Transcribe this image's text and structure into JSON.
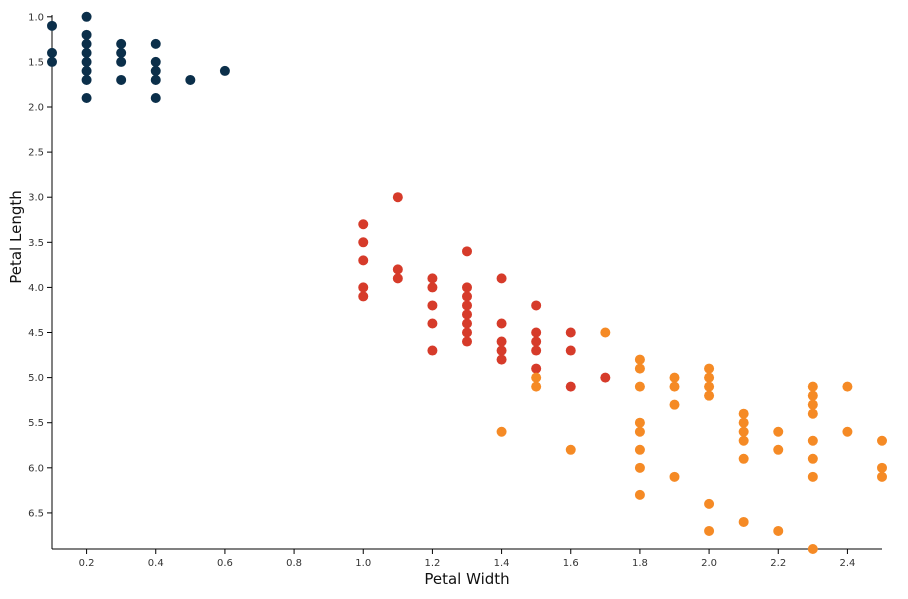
{
  "chart_data": {
    "type": "scatter",
    "title": "",
    "xlabel": "Petal Width",
    "ylabel": "Petal Length",
    "xlim": [
      0.1,
      2.5
    ],
    "ylim": [
      0.98,
      6.9
    ],
    "y_axis_inverted": true,
    "grid": false,
    "x_ticks": [
      "0.2",
      "0.4",
      "0.6",
      "0.8",
      "1.0",
      "1.2",
      "1.4",
      "1.6",
      "1.8",
      "2.0",
      "2.2",
      "2.4"
    ],
    "y_ticks": [
      "1.0",
      "1.5",
      "2.0",
      "2.5",
      "3.0",
      "3.5",
      "4.0",
      "4.5",
      "5.0",
      "5.5",
      "6.0",
      "6.5"
    ],
    "series": [
      {
        "color": "#0b2f4a",
        "points": [
          [
            0.1,
            1.1
          ],
          [
            0.1,
            1.4
          ],
          [
            0.1,
            1.5
          ],
          [
            0.2,
            1.0
          ],
          [
            0.2,
            1.2
          ],
          [
            0.2,
            1.3
          ],
          [
            0.2,
            1.4
          ],
          [
            0.2,
            1.5
          ],
          [
            0.2,
            1.6
          ],
          [
            0.2,
            1.7
          ],
          [
            0.2,
            1.9
          ],
          [
            0.3,
            1.3
          ],
          [
            0.3,
            1.4
          ],
          [
            0.3,
            1.5
          ],
          [
            0.3,
            1.7
          ],
          [
            0.4,
            1.3
          ],
          [
            0.4,
            1.5
          ],
          [
            0.4,
            1.6
          ],
          [
            0.4,
            1.7
          ],
          [
            0.4,
            1.9
          ],
          [
            0.5,
            1.7
          ],
          [
            0.6,
            1.6
          ]
        ]
      },
      {
        "color": "#d63b2a",
        "points": [
          [
            1.0,
            3.3
          ],
          [
            1.0,
            3.5
          ],
          [
            1.0,
            3.7
          ],
          [
            1.0,
            4.0
          ],
          [
            1.0,
            4.1
          ],
          [
            1.1,
            3.0
          ],
          [
            1.1,
            3.8
          ],
          [
            1.1,
            3.9
          ],
          [
            1.2,
            3.9
          ],
          [
            1.2,
            4.0
          ],
          [
            1.2,
            4.2
          ],
          [
            1.2,
            4.4
          ],
          [
            1.2,
            4.7
          ],
          [
            1.3,
            3.6
          ],
          [
            1.3,
            4.0
          ],
          [
            1.3,
            4.1
          ],
          [
            1.3,
            4.2
          ],
          [
            1.3,
            4.3
          ],
          [
            1.3,
            4.4
          ],
          [
            1.3,
            4.5
          ],
          [
            1.3,
            4.6
          ],
          [
            1.4,
            3.9
          ],
          [
            1.4,
            4.4
          ],
          [
            1.4,
            4.6
          ],
          [
            1.4,
            4.7
          ],
          [
            1.4,
            4.8
          ],
          [
            1.5,
            4.2
          ],
          [
            1.5,
            4.5
          ],
          [
            1.5,
            4.6
          ],
          [
            1.5,
            4.7
          ],
          [
            1.5,
            4.9
          ],
          [
            1.6,
            4.5
          ],
          [
            1.6,
            4.7
          ],
          [
            1.6,
            5.1
          ],
          [
            1.7,
            5.0
          ]
        ]
      },
      {
        "color": "#f58a25",
        "points": [
          [
            1.4,
            5.6
          ],
          [
            1.5,
            5.0
          ],
          [
            1.5,
            5.1
          ],
          [
            1.6,
            5.8
          ],
          [
            1.7,
            4.5
          ],
          [
            1.8,
            4.8
          ],
          [
            1.8,
            4.9
          ],
          [
            1.8,
            5.1
          ],
          [
            1.8,
            5.5
          ],
          [
            1.8,
            5.6
          ],
          [
            1.8,
            5.8
          ],
          [
            1.8,
            6.0
          ],
          [
            1.8,
            6.3
          ],
          [
            1.9,
            5.0
          ],
          [
            1.9,
            5.1
          ],
          [
            1.9,
            5.3
          ],
          [
            1.9,
            6.1
          ],
          [
            2.0,
            4.9
          ],
          [
            2.0,
            5.0
          ],
          [
            2.0,
            5.1
          ],
          [
            2.0,
            5.2
          ],
          [
            2.0,
            6.4
          ],
          [
            2.0,
            6.7
          ],
          [
            2.1,
            5.4
          ],
          [
            2.1,
            5.5
          ],
          [
            2.1,
            5.6
          ],
          [
            2.1,
            5.7
          ],
          [
            2.1,
            5.9
          ],
          [
            2.1,
            6.6
          ],
          [
            2.2,
            5.6
          ],
          [
            2.2,
            5.8
          ],
          [
            2.2,
            6.7
          ],
          [
            2.3,
            5.1
          ],
          [
            2.3,
            5.2
          ],
          [
            2.3,
            5.3
          ],
          [
            2.3,
            5.4
          ],
          [
            2.3,
            5.7
          ],
          [
            2.3,
            5.9
          ],
          [
            2.3,
            6.1
          ],
          [
            2.3,
            6.9
          ],
          [
            2.4,
            5.1
          ],
          [
            2.4,
            5.6
          ],
          [
            2.5,
            5.7
          ],
          [
            2.5,
            6.0
          ],
          [
            2.5,
            6.1
          ]
        ]
      }
    ]
  }
}
